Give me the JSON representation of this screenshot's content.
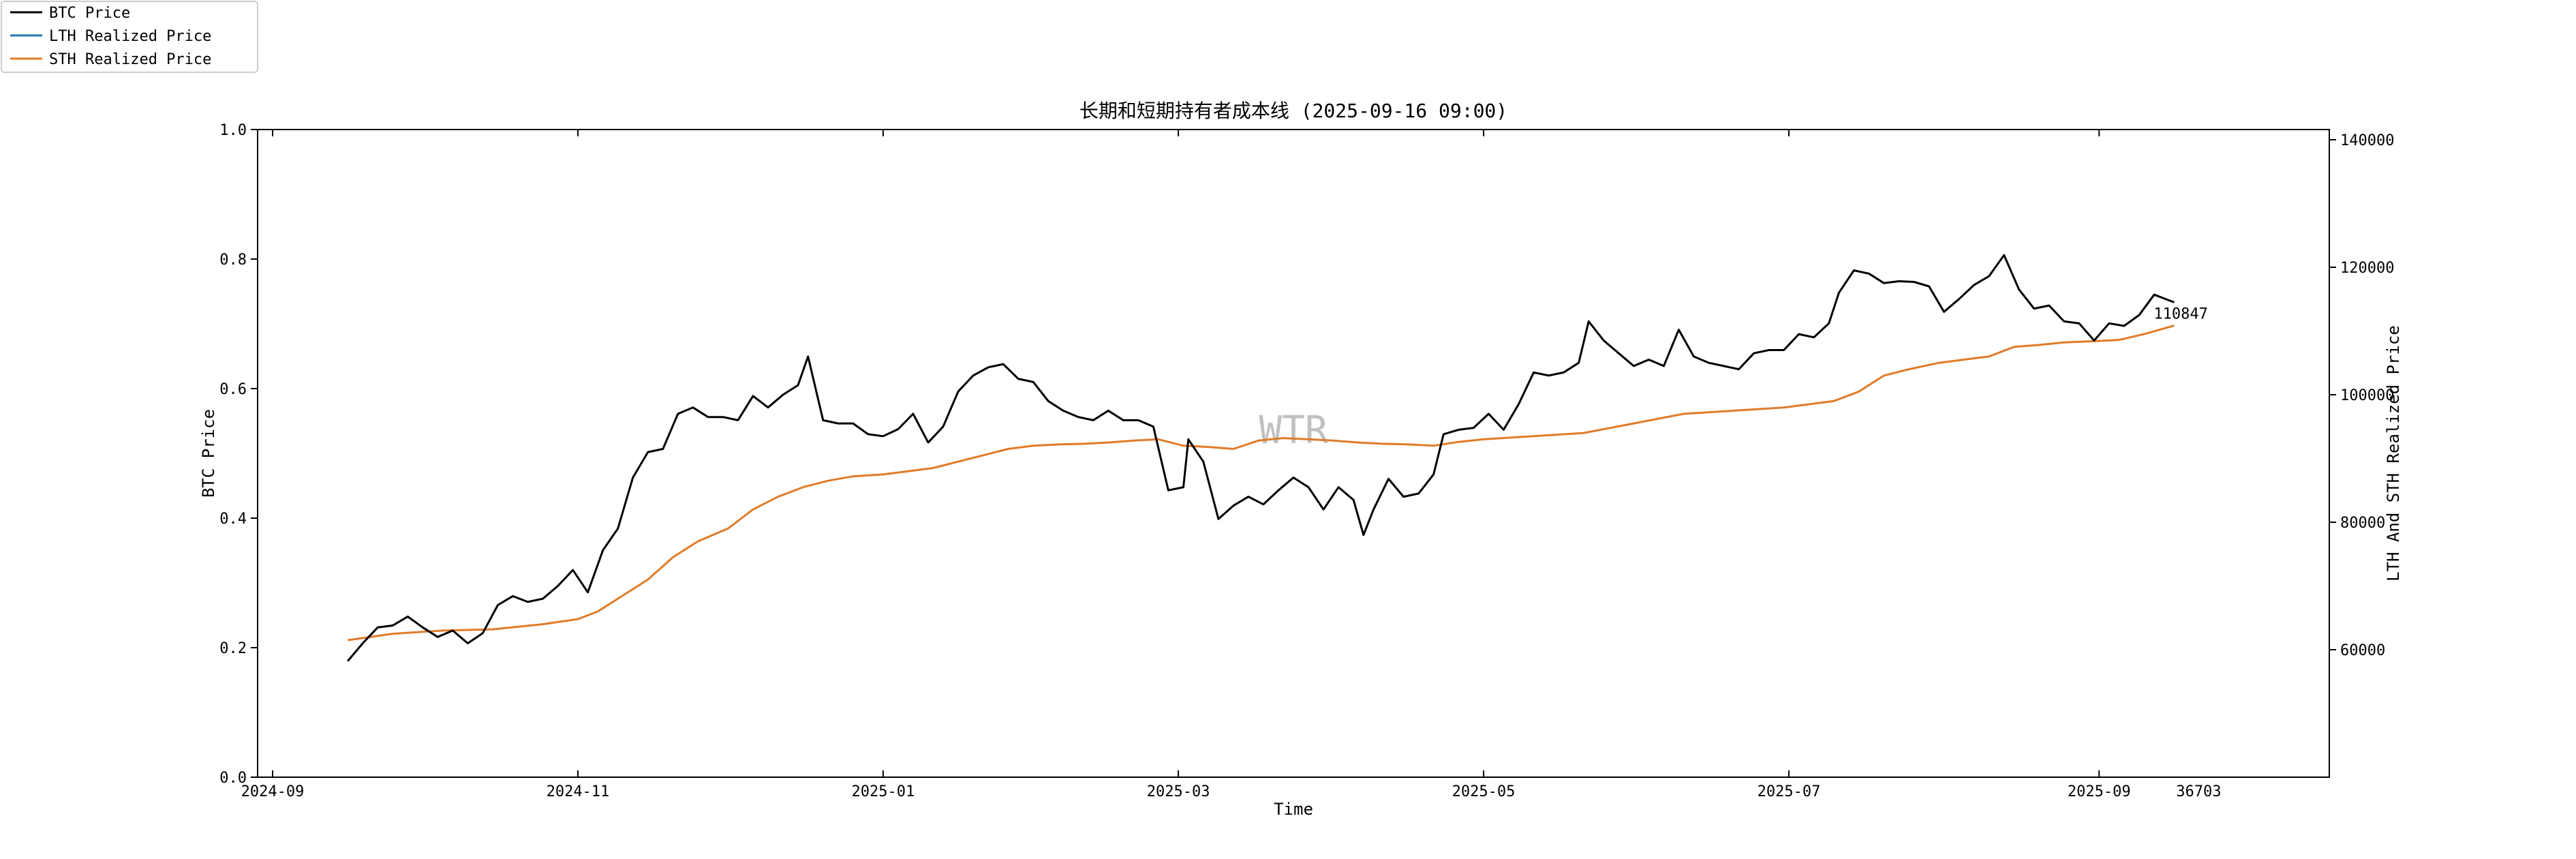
{
  "chart_data": {
    "type": "line",
    "title": "长期和短期持有者成本线 (2025-09-16 09:00)",
    "xlabel": "Time",
    "ylabel_left": "BTC Price",
    "ylabel_right": "LTH And STH Realized Price",
    "watermark": "WTR",
    "x_ticks": [
      "2024-09",
      "2024-11",
      "2025-01",
      "2025-03",
      "2025-05",
      "2025-07",
      "2025-09"
    ],
    "x_tick_dates": [
      "2024-09-01",
      "2024-11-01",
      "2025-01-01",
      "2025-03-01",
      "2025-05-01",
      "2025-07-01",
      "2025-09-01"
    ],
    "xlim": [
      "2024-08-29",
      "2025-10-17"
    ],
    "left_ticks": [
      "0.0",
      "0.2",
      "0.4",
      "0.6",
      "0.8",
      "1.0"
    ],
    "left_ylim": [
      0,
      1
    ],
    "right_ticks": [
      "60000",
      "80000",
      "100000",
      "120000",
      "140000"
    ],
    "right_ylim": [
      40000,
      141600
    ],
    "annotations": [
      {
        "text": "110847",
        "x": "2025-09-16",
        "y": 110847
      },
      {
        "text": "36703",
        "x": "2025-09-16",
        "y": 40000
      }
    ],
    "legend": {
      "position": "top-left"
    },
    "series": [
      {
        "name": "BTC Price",
        "color": "#000000",
        "x": [
          "2024-09-16",
          "2024-09-19",
          "2024-09-22",
          "2024-09-25",
          "2024-09-28",
          "2024-10-01",
          "2024-10-04",
          "2024-10-07",
          "2024-10-10",
          "2024-10-13",
          "2024-10-16",
          "2024-10-19",
          "2024-10-22",
          "2024-10-25",
          "2024-10-28",
          "2024-10-31",
          "2024-11-03",
          "2024-11-06",
          "2024-11-09",
          "2024-11-12",
          "2024-11-15",
          "2024-11-18",
          "2024-11-21",
          "2024-11-24",
          "2024-11-27",
          "2024-11-30",
          "2024-12-03",
          "2024-12-06",
          "2024-12-09",
          "2024-12-12",
          "2024-12-15",
          "2024-12-17",
          "2024-12-20",
          "2024-12-23",
          "2024-12-26",
          "2024-12-29",
          "2025-01-01",
          "2025-01-04",
          "2025-01-07",
          "2025-01-10",
          "2025-01-13",
          "2025-01-16",
          "2025-01-19",
          "2025-01-22",
          "2025-01-25",
          "2025-01-28",
          "2025-01-31",
          "2025-02-03",
          "2025-02-06",
          "2025-02-09",
          "2025-02-12",
          "2025-02-15",
          "2025-02-18",
          "2025-02-21",
          "2025-02-24",
          "2025-02-27",
          "2025-03-02",
          "2025-03-03",
          "2025-03-06",
          "2025-03-09",
          "2025-03-12",
          "2025-03-15",
          "2025-03-18",
          "2025-03-21",
          "2025-03-24",
          "2025-03-27",
          "2025-03-30",
          "2025-04-02",
          "2025-04-05",
          "2025-04-07",
          "2025-04-09",
          "2025-04-12",
          "2025-04-15",
          "2025-04-18",
          "2025-04-21",
          "2025-04-23",
          "2025-04-26",
          "2025-04-29",
          "2025-05-02",
          "2025-05-05",
          "2025-05-08",
          "2025-05-11",
          "2025-05-14",
          "2025-05-17",
          "2025-05-20",
          "2025-05-22",
          "2025-05-25",
          "2025-05-28",
          "2025-05-31",
          "2025-06-03",
          "2025-06-06",
          "2025-06-09",
          "2025-06-12",
          "2025-06-15",
          "2025-06-18",
          "2025-06-21",
          "2025-06-24",
          "2025-06-27",
          "2025-06-30",
          "2025-07-03",
          "2025-07-06",
          "2025-07-09",
          "2025-07-11",
          "2025-07-14",
          "2025-07-17",
          "2025-07-20",
          "2025-07-23",
          "2025-07-26",
          "2025-07-29",
          "2025-08-01",
          "2025-08-04",
          "2025-08-07",
          "2025-08-10",
          "2025-08-13",
          "2025-08-16",
          "2025-08-19",
          "2025-08-22",
          "2025-08-25",
          "2025-08-28",
          "2025-08-31",
          "2025-09-03",
          "2025-09-06",
          "2025-09-09",
          "2025-09-12",
          "2025-09-15",
          "2025-09-16"
        ],
        "y": [
          58200,
          61000,
          63500,
          63800,
          65200,
          63500,
          62000,
          63000,
          61000,
          62600,
          67000,
          68400,
          67500,
          68000,
          70000,
          72500,
          69000,
          75600,
          79000,
          87000,
          91000,
          91500,
          97000,
          98000,
          96500,
          96500,
          96000,
          99800,
          98000,
          100000,
          101500,
          106000,
          96000,
          95500,
          95500,
          93800,
          93500,
          94600,
          97000,
          92500,
          95000,
          100500,
          103000,
          104300,
          104800,
          102500,
          102000,
          99000,
          97500,
          96500,
          96000,
          97500,
          96000,
          96000,
          95000,
          85000,
          85500,
          93000,
          89500,
          80500,
          82600,
          84000,
          82800,
          85000,
          87000,
          85500,
          82000,
          85500,
          83500,
          78000,
          82000,
          86800,
          84000,
          84500,
          87500,
          93800,
          94500,
          94800,
          97000,
          94500,
          98500,
          103500,
          103000,
          103500,
          105000,
          111500,
          108500,
          106500,
          104500,
          105500,
          104500,
          110200,
          106000,
          105000,
          104500,
          104000,
          106500,
          107000,
          107000,
          109500,
          109000,
          111200,
          116000,
          119500,
          119000,
          117500,
          117800,
          117700,
          117000,
          113000,
          115000,
          117200,
          118600,
          121900,
          116500,
          113500,
          114000,
          111500,
          111200,
          108500,
          111200,
          110800,
          112500,
          115700,
          114800,
          114500
        ]
      },
      {
        "name": "LTH Realized Price",
        "color": "#1f77b4",
        "x": [],
        "y": []
      },
      {
        "name": "STH Realized Price",
        "color": "#e07b28",
        "x": [
          "2024-09-16",
          "2024-09-25",
          "2024-10-05",
          "2024-10-15",
          "2024-10-25",
          "2024-11-01",
          "2024-11-05",
          "2024-11-10",
          "2024-11-15",
          "2024-11-20",
          "2024-11-25",
          "2024-12-01",
          "2024-12-06",
          "2024-12-11",
          "2024-12-16",
          "2024-12-21",
          "2024-12-26",
          "2025-01-01",
          "2025-01-06",
          "2025-01-11",
          "2025-01-16",
          "2025-01-21",
          "2025-01-26",
          "2025-01-31",
          "2025-02-05",
          "2025-02-10",
          "2025-02-15",
          "2025-02-20",
          "2025-02-25",
          "2025-03-02",
          "2025-03-07",
          "2025-03-12",
          "2025-03-17",
          "2025-03-22",
          "2025-03-27",
          "2025-04-01",
          "2025-04-06",
          "2025-04-11",
          "2025-04-16",
          "2025-04-21",
          "2025-04-26",
          "2025-05-01",
          "2025-05-11",
          "2025-05-21",
          "2025-05-31",
          "2025-06-10",
          "2025-06-20",
          "2025-06-30",
          "2025-07-05",
          "2025-07-10",
          "2025-07-15",
          "2025-07-20",
          "2025-07-25",
          "2025-07-31",
          "2025-08-05",
          "2025-08-10",
          "2025-08-15",
          "2025-08-20",
          "2025-08-25",
          "2025-08-31",
          "2025-09-05",
          "2025-09-10",
          "2025-09-16"
        ],
        "y": [
          61500,
          62500,
          63000,
          63200,
          64000,
          64800,
          66000,
          68500,
          71000,
          74500,
          77000,
          79000,
          82000,
          84000,
          85500,
          86500,
          87200,
          87500,
          88000,
          88500,
          89500,
          90500,
          91500,
          92000,
          92200,
          92300,
          92500,
          92800,
          93000,
          92000,
          91800,
          91500,
          92800,
          93200,
          93000,
          92800,
          92500,
          92300,
          92200,
          92000,
          92600,
          93000,
          93500,
          94000,
          95500,
          97000,
          97500,
          98000,
          98500,
          99000,
          100500,
          103000,
          104000,
          105000,
          105500,
          106000,
          107500,
          107800,
          108200,
          108400,
          108600,
          109500,
          110847
        ]
      }
    ]
  }
}
